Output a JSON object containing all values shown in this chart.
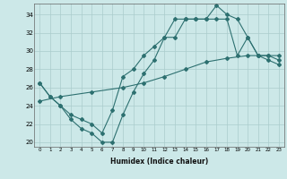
{
  "xlabel": "Humidex (Indice chaleur)",
  "bg_color": "#cce8e8",
  "line_color": "#2d7070",
  "grid_color": "#aacccc",
  "xlim": [
    -0.5,
    23.5
  ],
  "ylim": [
    19.5,
    35.2
  ],
  "xticks": [
    0,
    1,
    2,
    3,
    4,
    5,
    6,
    7,
    8,
    9,
    10,
    11,
    12,
    13,
    14,
    15,
    16,
    17,
    18,
    19,
    20,
    21,
    22,
    23
  ],
  "yticks": [
    20,
    22,
    24,
    26,
    28,
    30,
    32,
    34
  ],
  "line1_x": [
    0,
    1,
    2,
    3,
    4,
    5,
    6,
    7,
    8,
    9,
    10,
    11,
    12,
    13,
    14,
    15,
    16,
    17,
    18,
    19,
    20,
    21,
    22,
    23
  ],
  "line1_y": [
    26.5,
    25.0,
    24.0,
    22.5,
    21.5,
    21.0,
    20.0,
    20.0,
    23.0,
    25.5,
    27.5,
    29.0,
    31.5,
    31.5,
    33.5,
    33.5,
    33.5,
    35.0,
    34.0,
    33.5,
    31.5,
    29.5,
    29.0,
    28.5
  ],
  "line2_x": [
    0,
    2,
    5,
    8,
    10,
    12,
    14,
    16,
    18,
    20,
    21,
    22,
    23
  ],
  "line2_y": [
    24.5,
    25.0,
    25.5,
    26.0,
    26.5,
    27.2,
    28.0,
    28.8,
    29.2,
    29.5,
    29.5,
    29.5,
    29.5
  ],
  "line3_x": [
    0,
    1,
    2,
    3,
    4,
    5,
    6,
    7,
    8,
    9,
    10,
    11,
    12,
    13,
    14,
    15,
    16,
    17,
    18,
    19,
    20,
    21,
    22,
    23
  ],
  "line3_y": [
    26.5,
    25.0,
    24.0,
    23.0,
    22.5,
    22.0,
    21.0,
    23.5,
    27.2,
    28.0,
    29.5,
    30.5,
    31.5,
    33.5,
    33.5,
    33.5,
    33.5,
    33.5,
    33.5,
    29.5,
    31.5,
    29.5,
    29.5,
    29.0
  ]
}
